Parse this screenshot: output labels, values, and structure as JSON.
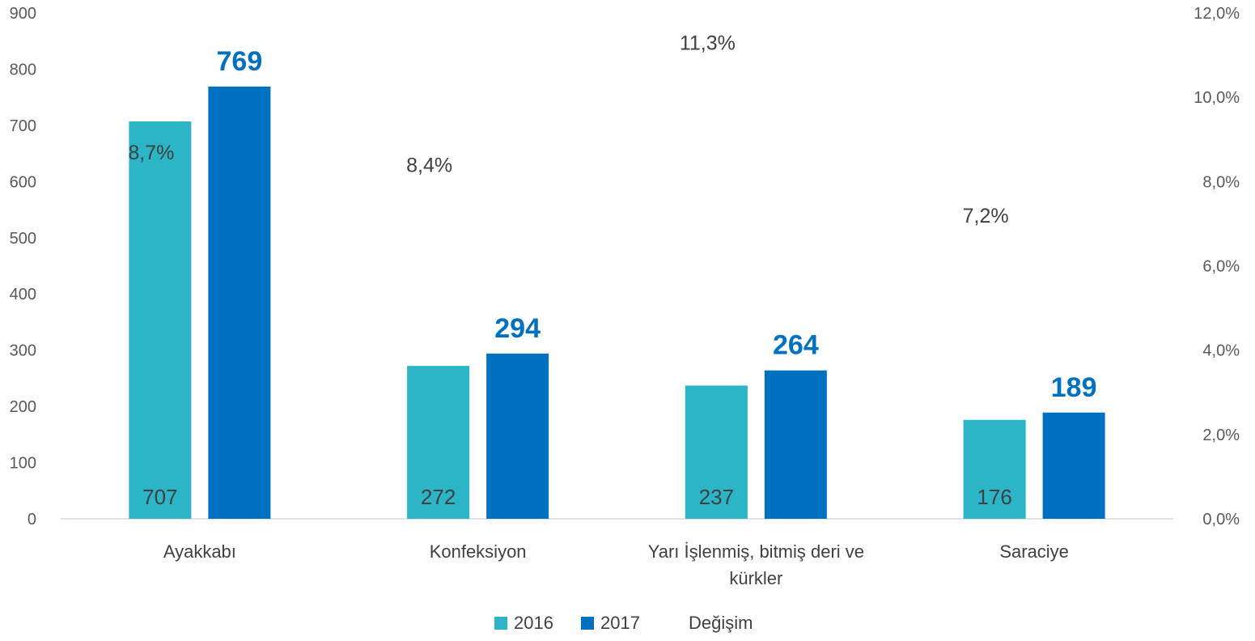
{
  "chart_data": {
    "type": "bar",
    "categories": [
      [
        "Ayakkabı"
      ],
      [
        "Konfeksiyon"
      ],
      [
        "Yarı İşlenmiş, bitmiş deri ve",
        "kürkler"
      ],
      [
        "Saraciye"
      ]
    ],
    "series": [
      {
        "name": "2016",
        "values": [
          707,
          272,
          237,
          176
        ],
        "color": "#2BB5C6",
        "labels": [
          "707",
          "272",
          "237",
          "176"
        ]
      },
      {
        "name": "2017",
        "values": [
          769,
          294,
          264,
          189
        ],
        "color": "#0070C0",
        "labels": [
          "769",
          "294",
          "264",
          "189"
        ]
      }
    ],
    "change": {
      "name": "Değişim",
      "values": [
        8.7,
        8.4,
        11.3,
        7.2
      ],
      "labels": [
        "8,7%",
        "8,4%",
        "11,3%",
        "7,2%"
      ]
    },
    "ylim": [
      0,
      900
    ],
    "yticks": [
      "0",
      "100",
      "200",
      "300",
      "400",
      "500",
      "600",
      "700",
      "800",
      "900"
    ],
    "y2lim": [
      0,
      12
    ],
    "y2ticks": [
      "0,0%",
      "2,0%",
      "4,0%",
      "6,0%",
      "8,0%",
      "10,0%",
      "12,0%"
    ],
    "grid": false,
    "legend_position": "bottom"
  }
}
